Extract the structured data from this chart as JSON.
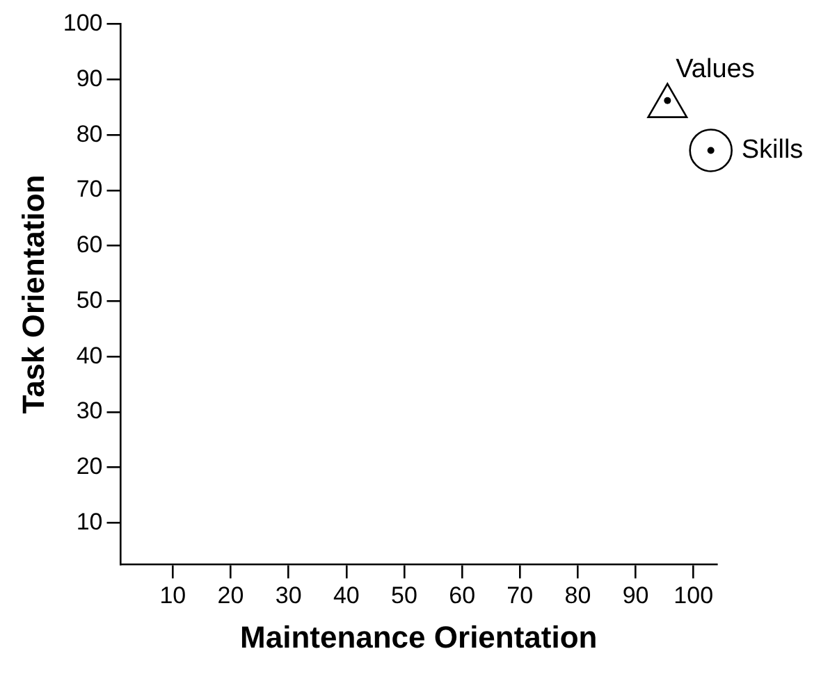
{
  "chart_data": {
    "type": "scatter",
    "xlabel": "Maintenance Orientation",
    "ylabel": "Task Orientation",
    "xlim": [
      1,
      104
    ],
    "ylim": [
      2.5,
      100
    ],
    "xticks": [
      10,
      20,
      30,
      40,
      50,
      60,
      70,
      80,
      90,
      100
    ],
    "yticks": [
      10,
      20,
      30,
      40,
      50,
      60,
      70,
      80,
      90,
      100
    ],
    "grid": false,
    "legend": false,
    "series": [
      {
        "name": "Values",
        "color": "#000000",
        "marker": "triangle",
        "x": [
          95.5
        ],
        "values": [
          85.2
        ]
      },
      {
        "name": "Skills",
        "color": "#000000",
        "marker": "circle",
        "x": [
          103
        ],
        "values": [
          77.2
        ]
      }
    ]
  }
}
